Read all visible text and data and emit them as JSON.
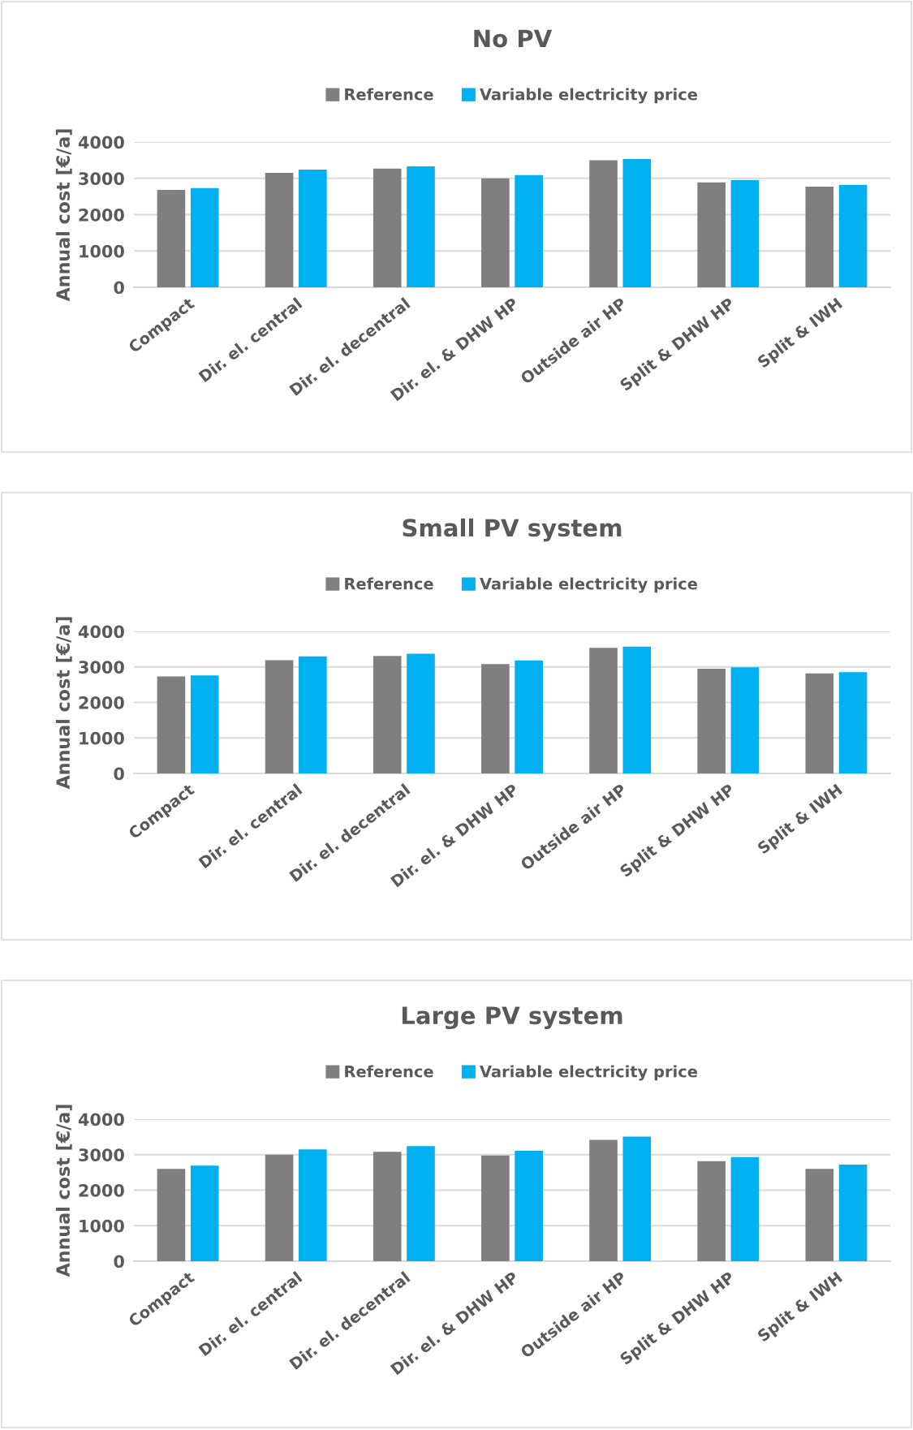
{
  "chart_data": [
    {
      "type": "bar",
      "title": "No PV",
      "ylabel": "Annual cost [€/a]",
      "categories": [
        "Compact",
        "Dir. el. central",
        "Dir. el. decentral",
        "Dir. el. & DHW HP",
        "Outside air HP",
        "Split & DHW HP",
        "Split & IWH"
      ],
      "series": [
        {
          "name": "Reference",
          "color": "#7f7f7f",
          "values": [
            2680,
            3150,
            3270,
            3000,
            3500,
            2890,
            2770
          ]
        },
        {
          "name": "Variable electricity price",
          "color": "#00b0f0",
          "values": [
            2730,
            3240,
            3330,
            3090,
            3530,
            2950,
            2820
          ]
        }
      ],
      "ylim": [
        0,
        4000
      ],
      "yticks": [
        0,
        1000,
        2000,
        3000,
        4000
      ],
      "grid": "y",
      "legend": "top"
    },
    {
      "type": "bar",
      "title": "Small PV system",
      "ylabel": "Annual cost [€/a]",
      "categories": [
        "Compact",
        "Dir. el. central",
        "Dir. el. decentral",
        "Dir. el. & DHW HP",
        "Outside air HP",
        "Split & DHW HP",
        "Split & IWH"
      ],
      "series": [
        {
          "name": "Reference",
          "color": "#7f7f7f",
          "values": [
            2730,
            3190,
            3310,
            3080,
            3540,
            2950,
            2820
          ]
        },
        {
          "name": "Variable electricity price",
          "color": "#00b0f0",
          "values": [
            2760,
            3300,
            3370,
            3180,
            3570,
            2990,
            2850
          ]
        }
      ],
      "ylim": [
        0,
        4000
      ],
      "yticks": [
        0,
        1000,
        2000,
        3000,
        4000
      ],
      "grid": "y",
      "legend": "top"
    },
    {
      "type": "bar",
      "title": "Large PV system",
      "ylabel": "Annual cost [€/a]",
      "categories": [
        "Compact",
        "Dir. el. central",
        "Dir. el. decentral",
        "Dir. el. & DHW HP",
        "Outside air HP",
        "Split & DHW HP",
        "Split & IWH"
      ],
      "series": [
        {
          "name": "Reference",
          "color": "#7f7f7f",
          "values": [
            2600,
            3000,
            3080,
            2980,
            3420,
            2820,
            2600
          ]
        },
        {
          "name": "Variable electricity price",
          "color": "#00b0f0",
          "values": [
            2690,
            3150,
            3240,
            3110,
            3510,
            2930,
            2720
          ]
        }
      ],
      "ylim": [
        0,
        4000
      ],
      "yticks": [
        0,
        1000,
        2000,
        3000,
        4000
      ],
      "grid": "y",
      "legend": "top"
    }
  ]
}
